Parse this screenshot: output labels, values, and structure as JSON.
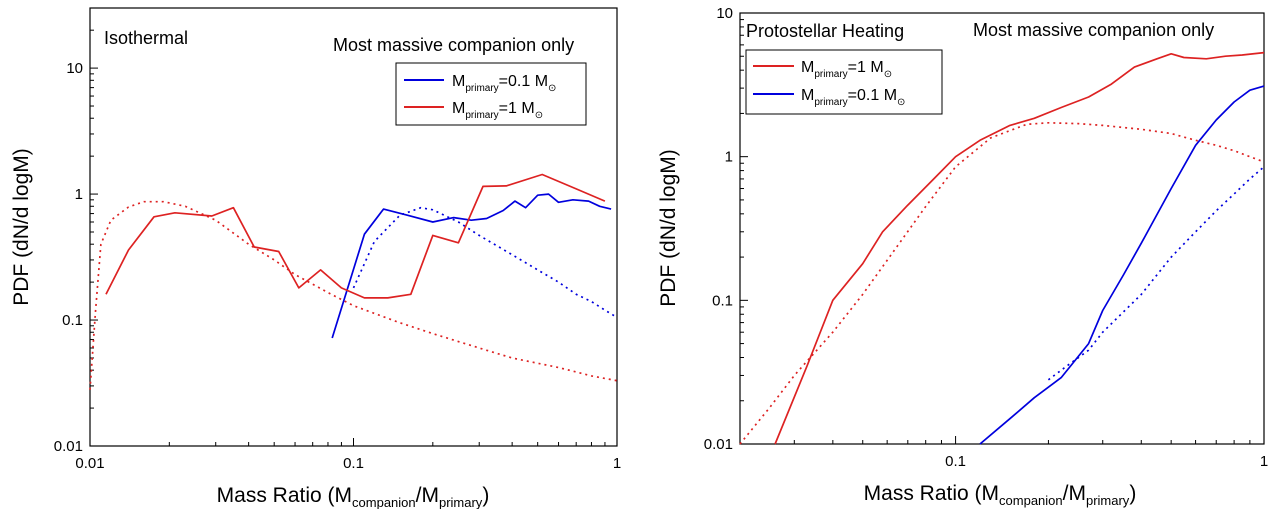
{
  "chart_data": [
    {
      "type": "line",
      "title": "Isothermal",
      "annotation": "Most massive companion only",
      "xlabel": {
        "main": "Mass Ratio (M",
        "sub1": "companion",
        "mid": "/M",
        "sub2": "primary",
        "end": ")"
      },
      "ylabel": "PDF (dN/d logM)",
      "xscale": "log",
      "yscale": "log",
      "xlim": [
        0.01,
        1
      ],
      "ylim": [
        0.01,
        30
      ],
      "xticks": [
        0.01,
        0.1,
        1
      ],
      "xtick_labels": [
        "0.01",
        "0.1",
        "1"
      ],
      "yticks": [
        0.01,
        0.1,
        1,
        10
      ],
      "ytick_labels": [
        "0.01",
        "0.1",
        "1",
        "10"
      ],
      "legend": {
        "placement": "top-right",
        "entries": [
          {
            "pre": "M",
            "sub": "primary",
            "post": "=0.1  M",
            "sun": "⊙",
            "color": "#0000dd"
          },
          {
            "pre": "M",
            "sub": "primary",
            "post": "=1  M",
            "sun": "⊙",
            "color": "#dd2222"
          }
        ]
      },
      "series": [
        {
          "color": "#0000dd",
          "style": "solid",
          "x": [
            0.083,
            0.11,
            0.13,
            0.16,
            0.2,
            0.24,
            0.28,
            0.32,
            0.37,
            0.41,
            0.45,
            0.5,
            0.55,
            0.6,
            0.68,
            0.78,
            0.86,
            0.95
          ],
          "y": [
            0.072,
            0.48,
            0.76,
            0.68,
            0.6,
            0.65,
            0.62,
            0.64,
            0.74,
            0.88,
            0.78,
            0.98,
            1.0,
            0.86,
            0.9,
            0.88,
            0.8,
            0.76
          ]
        },
        {
          "color": "#0000dd",
          "style": "dotted",
          "x": [
            0.1,
            0.12,
            0.15,
            0.18,
            0.2,
            0.25,
            0.3,
            0.4,
            0.5,
            0.6,
            0.7,
            0.8,
            0.9,
            1.0
          ],
          "y": [
            0.18,
            0.42,
            0.68,
            0.78,
            0.75,
            0.6,
            0.47,
            0.33,
            0.25,
            0.2,
            0.16,
            0.14,
            0.12,
            0.105
          ]
        },
        {
          "color": "#dd2222",
          "style": "solid",
          "x": [
            0.0115,
            0.014,
            0.0175,
            0.021,
            0.029,
            0.035,
            0.042,
            0.052,
            0.062,
            0.075,
            0.09,
            0.11,
            0.135,
            0.165,
            0.2,
            0.25,
            0.31,
            0.38,
            0.52,
            0.7,
            0.9
          ],
          "y": [
            0.16,
            0.36,
            0.66,
            0.71,
            0.67,
            0.78,
            0.38,
            0.35,
            0.18,
            0.25,
            0.18,
            0.15,
            0.15,
            0.16,
            0.47,
            0.41,
            1.15,
            1.16,
            1.43,
            1.1,
            0.88
          ]
        },
        {
          "color": "#dd2222",
          "style": "dotted",
          "x": [
            0.01,
            0.0105,
            0.011,
            0.012,
            0.014,
            0.016,
            0.019,
            0.023,
            0.03,
            0.04,
            0.05,
            0.06,
            0.08,
            0.1,
            0.15,
            0.2,
            0.3,
            0.4,
            0.6,
            0.8,
            1.0
          ],
          "y": [
            0.028,
            0.12,
            0.4,
            0.62,
            0.79,
            0.87,
            0.87,
            0.8,
            0.62,
            0.4,
            0.3,
            0.23,
            0.165,
            0.13,
            0.095,
            0.078,
            0.06,
            0.05,
            0.042,
            0.036,
            0.033
          ]
        }
      ]
    },
    {
      "type": "line",
      "title": "Protostellar Heating",
      "annotation": "Most massive companion only",
      "xlabel": {
        "main": "Mass Ratio (M",
        "sub1": "companion",
        "mid": "/M",
        "sub2": "primary",
        "end": ")"
      },
      "ylabel": "PDF (dN/d logM)",
      "xscale": "log",
      "yscale": "log",
      "xlim": [
        0.02,
        1
      ],
      "ylim": [
        0.01,
        10
      ],
      "xticks": [
        0.1,
        1
      ],
      "xtick_labels": [
        "0.1",
        "1"
      ],
      "yticks": [
        0.01,
        0.1,
        1,
        10
      ],
      "ytick_labels": [
        "0.01",
        "0.1",
        "1",
        "10"
      ],
      "legend": {
        "placement": "top-left",
        "entries": [
          {
            "pre": "M",
            "sub": "primary",
            "post": "=1  M",
            "sun": "⊙",
            "color": "#dd2222"
          },
          {
            "pre": "M",
            "sub": "primary",
            "post": "=0.1  M",
            "sun": "⊙",
            "color": "#0000dd"
          }
        ]
      },
      "series": [
        {
          "color": "#dd2222",
          "style": "solid",
          "x": [
            0.026,
            0.033,
            0.04,
            0.05,
            0.058,
            0.07,
            0.085,
            0.1,
            0.12,
            0.15,
            0.18,
            0.22,
            0.27,
            0.32,
            0.38,
            0.45,
            0.5,
            0.55,
            0.65,
            0.75,
            0.85,
            1.0
          ],
          "y": [
            0.01,
            0.035,
            0.1,
            0.18,
            0.3,
            0.46,
            0.7,
            1.0,
            1.3,
            1.65,
            1.85,
            2.2,
            2.6,
            3.2,
            4.2,
            4.8,
            5.2,
            4.9,
            4.8,
            5.0,
            5.1,
            5.3
          ]
        },
        {
          "color": "#dd2222",
          "style": "dotted",
          "x": [
            0.02,
            0.025,
            0.03,
            0.04,
            0.05,
            0.06,
            0.08,
            0.1,
            0.13,
            0.17,
            0.2,
            0.25,
            0.3,
            0.4,
            0.5,
            0.6,
            0.7,
            0.8,
            0.9,
            1.0
          ],
          "y": [
            0.01,
            0.018,
            0.03,
            0.06,
            0.11,
            0.19,
            0.45,
            0.85,
            1.35,
            1.68,
            1.72,
            1.7,
            1.65,
            1.55,
            1.45,
            1.3,
            1.2,
            1.1,
            1.0,
            0.92
          ]
        },
        {
          "color": "#0000dd",
          "style": "solid",
          "x": [
            0.12,
            0.15,
            0.18,
            0.22,
            0.27,
            0.3,
            0.35,
            0.4,
            0.5,
            0.6,
            0.7,
            0.8,
            0.9,
            1.0
          ],
          "y": [
            0.01,
            0.015,
            0.021,
            0.029,
            0.05,
            0.085,
            0.15,
            0.25,
            0.6,
            1.2,
            1.8,
            2.4,
            2.9,
            3.1
          ]
        },
        {
          "color": "#0000dd",
          "style": "dotted",
          "x": [
            0.2,
            0.23,
            0.27,
            0.3,
            0.4,
            0.5,
            0.6,
            0.7,
            0.8,
            0.9,
            1.0
          ],
          "y": [
            0.028,
            0.035,
            0.045,
            0.06,
            0.11,
            0.2,
            0.3,
            0.42,
            0.55,
            0.7,
            0.85
          ]
        }
      ]
    }
  ]
}
